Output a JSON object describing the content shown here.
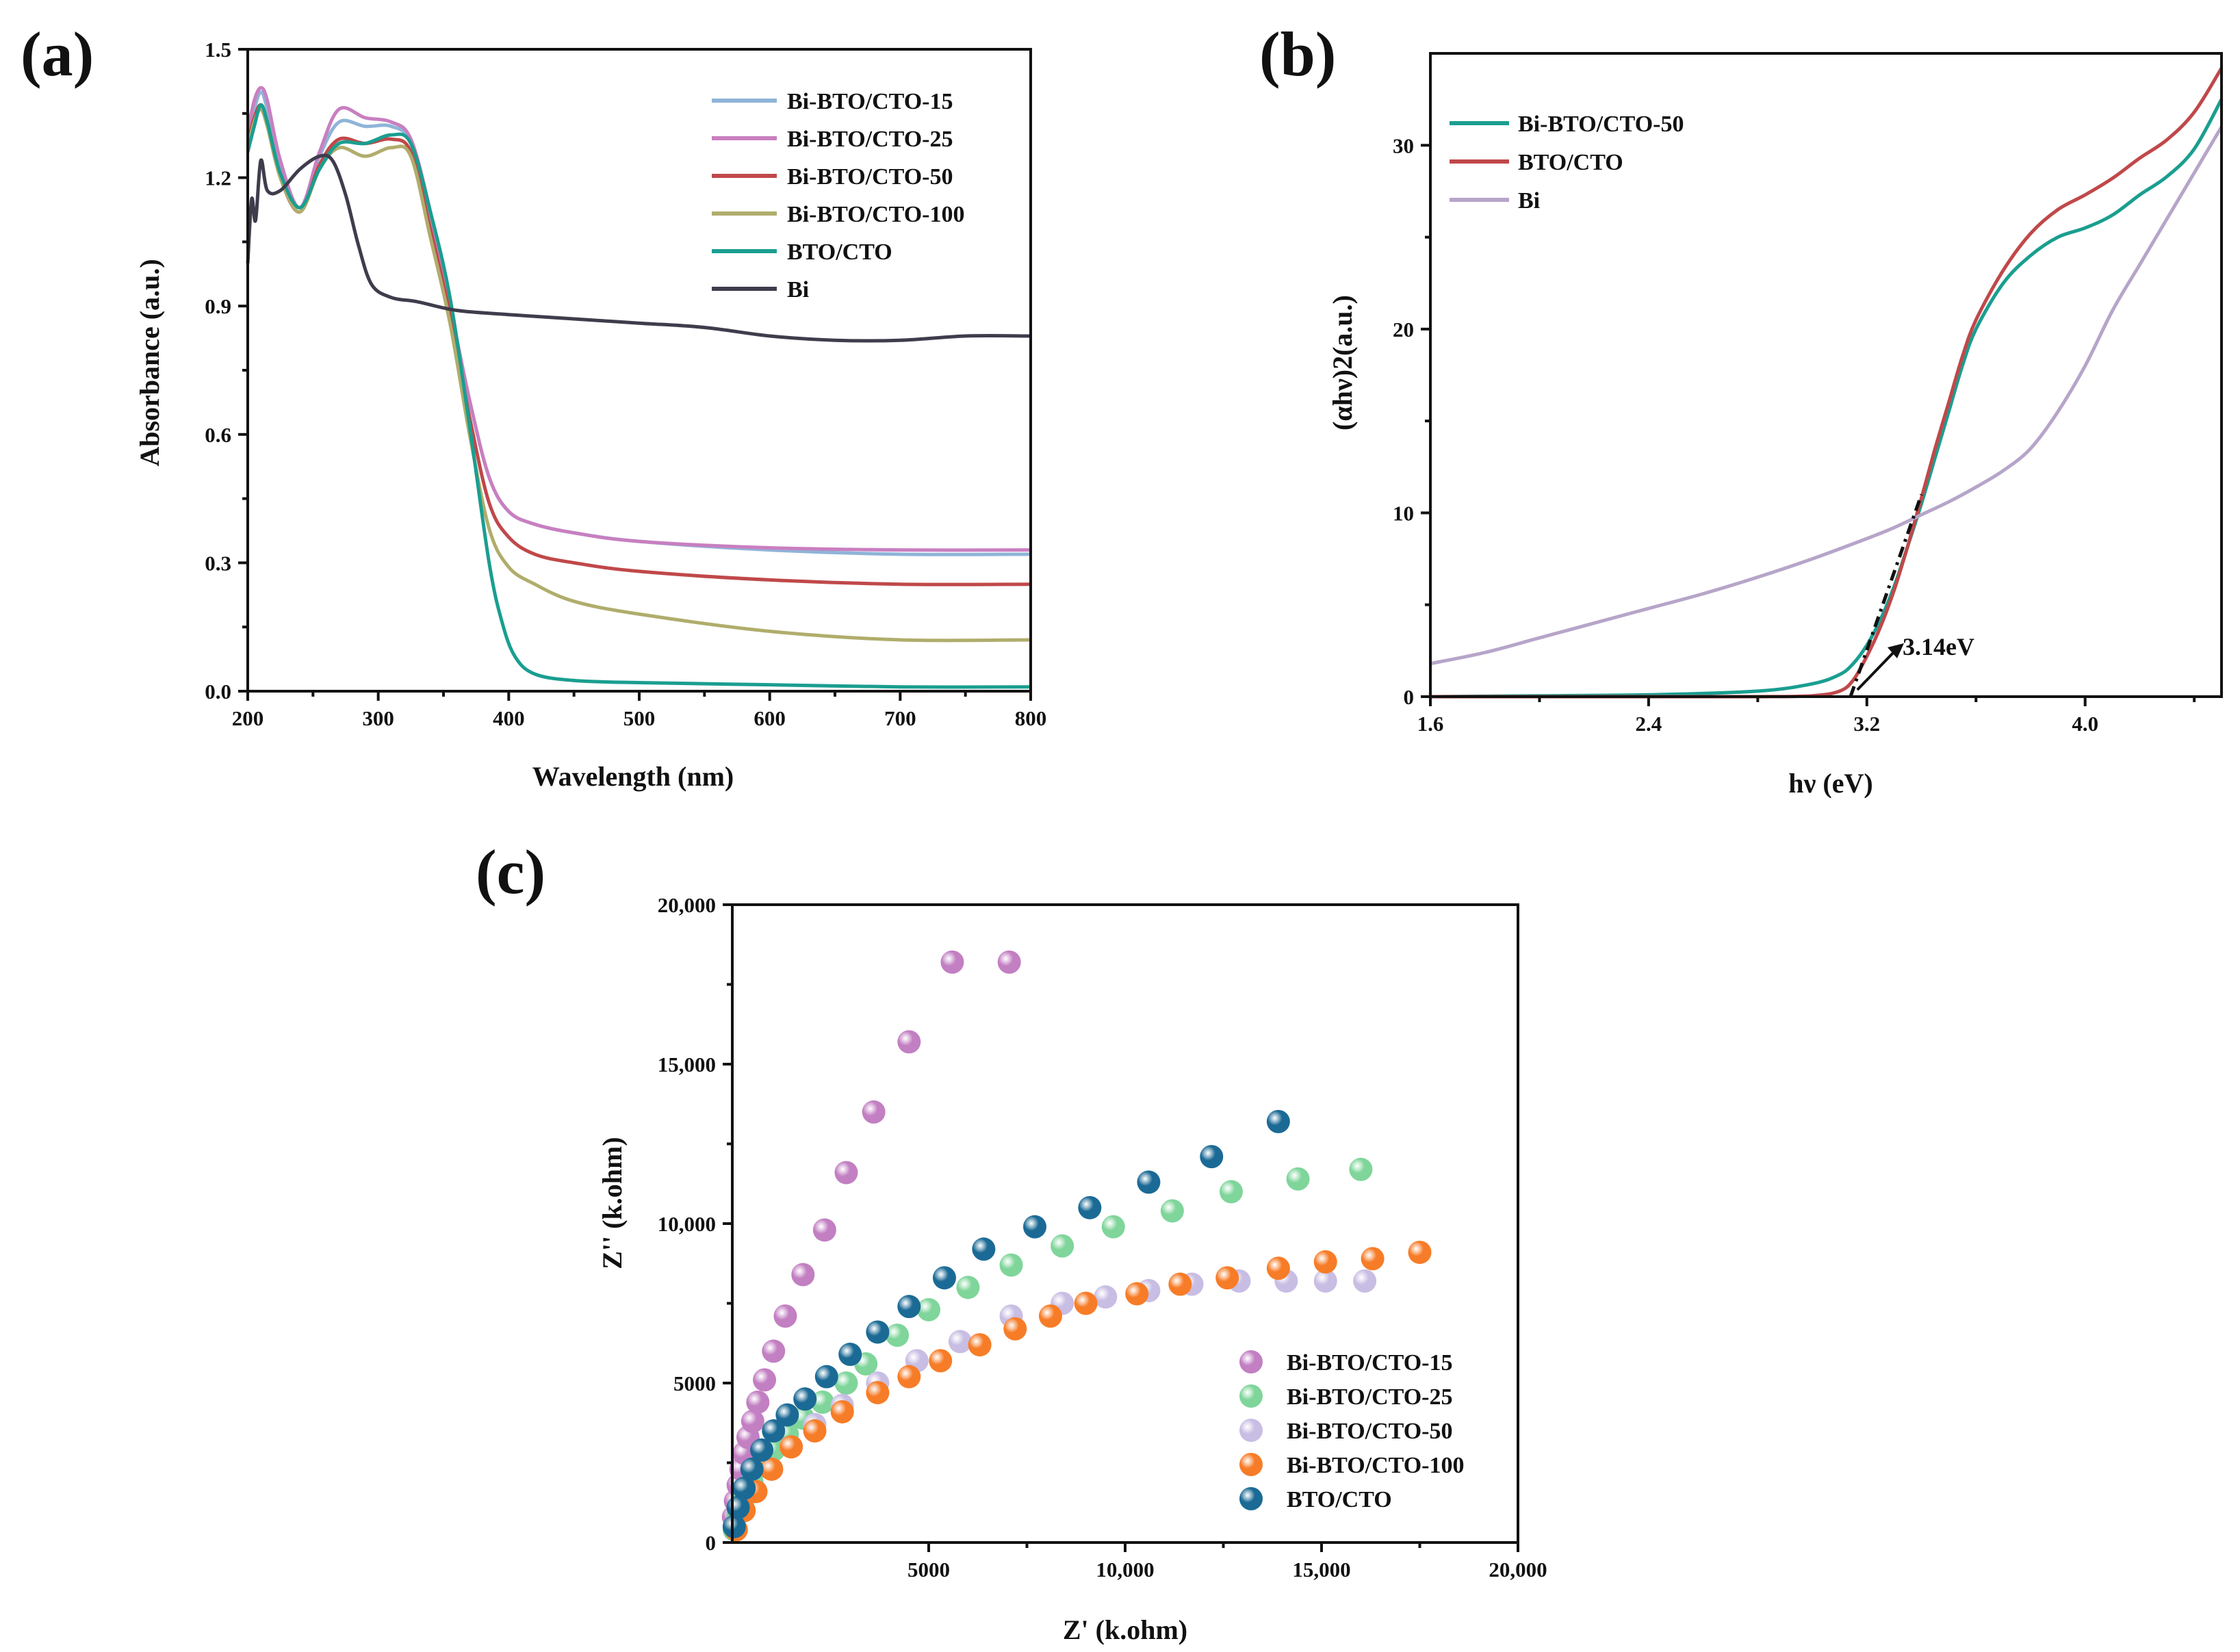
{
  "chart_data": [
    {
      "panel": "(a)",
      "type": "line",
      "title": "",
      "xlabel": "Wavelength (nm)",
      "ylabel": "Absorbance (a.u.)",
      "xlim": [
        200,
        800
      ],
      "ylim": [
        0,
        1.5
      ],
      "xticks": [
        "200",
        "300",
        "400",
        "500",
        "600",
        "700",
        "800"
      ],
      "yticks": [
        "0.0",
        "0.3",
        "0.6",
        "0.9",
        "1.2",
        "1.5"
      ],
      "legend_position": "top-right",
      "series": [
        {
          "name": "Bi-BTO/CTO-15",
          "color": "#8fb4d8",
          "x": [
            200,
            205,
            210,
            215,
            225,
            240,
            255,
            270,
            290,
            310,
            325,
            340,
            355,
            370,
            385,
            400,
            420,
            450,
            500,
            600,
            700,
            800
          ],
          "y": [
            1.3,
            1.36,
            1.4,
            1.36,
            1.22,
            1.13,
            1.25,
            1.33,
            1.32,
            1.32,
            1.28,
            1.1,
            0.9,
            0.68,
            0.5,
            0.42,
            0.39,
            0.37,
            0.35,
            0.33,
            0.32,
            0.32
          ]
        },
        {
          "name": "Bi-BTO/CTO-25",
          "color": "#c87fc0",
          "x": [
            200,
            205,
            210,
            215,
            225,
            240,
            255,
            270,
            290,
            310,
            325,
            340,
            355,
            370,
            385,
            400,
            420,
            450,
            500,
            600,
            700,
            800
          ],
          "y": [
            1.31,
            1.38,
            1.41,
            1.38,
            1.24,
            1.13,
            1.26,
            1.36,
            1.34,
            1.33,
            1.29,
            1.12,
            0.9,
            0.68,
            0.5,
            0.42,
            0.39,
            0.37,
            0.35,
            0.335,
            0.33,
            0.33
          ]
        },
        {
          "name": "Bi-BTO/CTO-50",
          "color": "#c0484a",
          "x": [
            200,
            205,
            210,
            215,
            225,
            240,
            255,
            270,
            290,
            310,
            325,
            340,
            355,
            370,
            385,
            400,
            420,
            450,
            500,
            600,
            700,
            800
          ],
          "y": [
            1.28,
            1.34,
            1.37,
            1.33,
            1.2,
            1.12,
            1.23,
            1.29,
            1.28,
            1.29,
            1.26,
            1.08,
            0.88,
            0.64,
            0.44,
            0.36,
            0.32,
            0.3,
            0.28,
            0.26,
            0.25,
            0.25
          ]
        },
        {
          "name": "Bi-BTO/CTO-100",
          "color": "#b0ad6c",
          "x": [
            200,
            205,
            210,
            215,
            225,
            240,
            255,
            270,
            290,
            310,
            325,
            340,
            355,
            370,
            385,
            400,
            420,
            450,
            500,
            600,
            700,
            800
          ],
          "y": [
            1.27,
            1.33,
            1.36,
            1.32,
            1.2,
            1.12,
            1.22,
            1.27,
            1.25,
            1.27,
            1.25,
            1.06,
            0.86,
            0.6,
            0.38,
            0.29,
            0.25,
            0.21,
            0.18,
            0.14,
            0.12,
            0.12
          ]
        },
        {
          "name": "BTO/CTO",
          "color": "#1a9e90",
          "x": [
            200,
            205,
            210,
            215,
            225,
            240,
            255,
            270,
            290,
            310,
            325,
            340,
            355,
            370,
            385,
            395,
            405,
            420,
            450,
            500,
            600,
            700,
            800
          ],
          "y": [
            1.26,
            1.32,
            1.37,
            1.33,
            1.21,
            1.13,
            1.22,
            1.28,
            1.28,
            1.3,
            1.28,
            1.12,
            0.92,
            0.62,
            0.3,
            0.16,
            0.08,
            0.04,
            0.025,
            0.02,
            0.015,
            0.01,
            0.01
          ]
        },
        {
          "name": "Bi",
          "color": "#3f3c4c",
          "x": [
            200,
            203,
            206,
            210,
            215,
            225,
            240,
            255,
            265,
            275,
            285,
            295,
            310,
            330,
            360,
            400,
            450,
            500,
            550,
            600,
            650,
            700,
            750,
            800
          ],
          "y": [
            1.0,
            1.15,
            1.1,
            1.24,
            1.17,
            1.17,
            1.22,
            1.25,
            1.24,
            1.16,
            1.04,
            0.95,
            0.92,
            0.91,
            0.89,
            0.88,
            0.87,
            0.86,
            0.85,
            0.83,
            0.82,
            0.82,
            0.83,
            0.83
          ]
        }
      ]
    },
    {
      "panel": "(b)",
      "type": "line",
      "title": "",
      "xlabel": "hν (eV)",
      "ylabel": "(αhν)2(a.u.)",
      "xlim": [
        1.6,
        4.5
      ],
      "ylim": [
        0,
        35
      ],
      "xticks": [
        "1.6",
        "2.4",
        "3.2",
        "4.0"
      ],
      "yticks": [
        "0",
        "10",
        "20",
        "30"
      ],
      "legend_position": "top-left",
      "annotation": "3.14eV",
      "tangent": {
        "x": [
          3.14,
          3.4
        ],
        "y": [
          0,
          11
        ]
      },
      "series": [
        {
          "name": "Bi-BTO/CTO-50",
          "color": "#1a9e90",
          "x": [
            1.6,
            2.0,
            2.4,
            2.8,
            3.0,
            3.1,
            3.15,
            3.2,
            3.25,
            3.3,
            3.35,
            3.4,
            3.45,
            3.5,
            3.55,
            3.6,
            3.7,
            3.8,
            3.9,
            4.0,
            4.1,
            4.2,
            4.3,
            4.4,
            4.5
          ],
          "y": [
            0.0,
            0.05,
            0.1,
            0.3,
            0.7,
            1.2,
            1.8,
            2.8,
            4.2,
            6.0,
            8.2,
            10.5,
            13.0,
            15.5,
            18.0,
            20.0,
            22.5,
            24.0,
            25.0,
            25.5,
            26.2,
            27.3,
            28.3,
            29.8,
            32.5
          ]
        },
        {
          "name": "BTO/CTO",
          "color": "#c0484a",
          "x": [
            1.6,
            2.0,
            2.4,
            2.8,
            3.0,
            3.1,
            3.15,
            3.2,
            3.25,
            3.3,
            3.35,
            3.4,
            3.45,
            3.5,
            3.55,
            3.6,
            3.7,
            3.8,
            3.9,
            4.0,
            4.1,
            4.2,
            4.3,
            4.4,
            4.5
          ],
          "y": [
            0.0,
            0.0,
            0.0,
            0.0,
            0.05,
            0.3,
            0.9,
            2.2,
            3.8,
            5.8,
            8.2,
            10.8,
            13.5,
            16.0,
            18.5,
            20.5,
            23.2,
            25.2,
            26.5,
            27.3,
            28.2,
            29.3,
            30.3,
            31.8,
            34.2
          ]
        },
        {
          "name": "Bi",
          "color": "#b6a5c9",
          "x": [
            1.6,
            1.8,
            2.0,
            2.2,
            2.4,
            2.6,
            2.8,
            3.0,
            3.2,
            3.3,
            3.4,
            3.5,
            3.6,
            3.7,
            3.8,
            3.9,
            4.0,
            4.1,
            4.2,
            4.3,
            4.4,
            4.5
          ],
          "y": [
            1.8,
            2.4,
            3.2,
            4.0,
            4.8,
            5.6,
            6.5,
            7.5,
            8.6,
            9.2,
            9.9,
            10.6,
            11.4,
            12.3,
            13.5,
            15.5,
            18.0,
            21.0,
            23.5,
            26.0,
            28.5,
            31.0
          ]
        }
      ]
    },
    {
      "panel": "(c)",
      "type": "scatter",
      "title": "",
      "xlabel": "Z' (k.ohm)",
      "ylabel": "Z'' (k.ohm)",
      "xlim": [
        0,
        20000
      ],
      "ylim": [
        0,
        20000
      ],
      "xticks": [
        "5000",
        "10,000",
        "15,000",
        "20,000"
      ],
      "yticks": [
        "0",
        "5000",
        "10,000",
        "15,000",
        "20,000"
      ],
      "x_origin_label": "0",
      "legend_position": "bottom-right",
      "series": [
        {
          "name": "Bi-BTO/CTO-15",
          "color": "#c27fc2",
          "x": [
            30,
            80,
            150,
            220,
            300,
            400,
            520,
            650,
            820,
            1050,
            1350,
            1800,
            2350,
            2900,
            3600,
            4500,
            5600,
            7050
          ],
          "y": [
            800,
            1300,
            1800,
            2300,
            2800,
            3300,
            3800,
            4400,
            5100,
            6000,
            7100,
            8400,
            9800,
            11600,
            13500,
            15700,
            18200,
            18200
          ]
        },
        {
          "name": "Bi-BTO/CTO-25",
          "color": "#7fd59a",
          "x": [
            50,
            150,
            300,
            500,
            750,
            1050,
            1400,
            1800,
            2300,
            2900,
            3400,
            4200,
            5000,
            6000,
            7100,
            8400,
            9700,
            11200,
            12700,
            14400,
            16000
          ],
          "y": [
            400,
            900,
            1400,
            1900,
            2400,
            2900,
            3400,
            3900,
            4400,
            5000,
            5600,
            6500,
            7300,
            8000,
            8700,
            9300,
            9900,
            10400,
            11000,
            11400,
            11700
          ]
        },
        {
          "name": "Bi-BTO/CTO-50",
          "color": "#c8bde3",
          "x": [
            100,
            300,
            600,
            1000,
            1500,
            2100,
            2800,
            3700,
            4700,
            5800,
            7100,
            8400,
            9500,
            10600,
            11700,
            12900,
            14100,
            15100,
            16100
          ],
          "y": [
            400,
            1000,
            1600,
            2300,
            3000,
            3700,
            4300,
            5000,
            5700,
            6300,
            7100,
            7500,
            7700,
            7900,
            8100,
            8200,
            8200,
            8200,
            8200
          ]
        },
        {
          "name": "Bi-BTO/CTO-100",
          "color": "#f77c27",
          "x": [
            100,
            300,
            600,
            1000,
            1500,
            2100,
            2800,
            3700,
            4500,
            5300,
            6300,
            7200,
            8100,
            9000,
            10300,
            11400,
            12600,
            13900,
            15100,
            16300,
            17500
          ],
          "y": [
            400,
            1000,
            1600,
            2300,
            3000,
            3500,
            4100,
            4700,
            5200,
            5700,
            6200,
            6700,
            7100,
            7500,
            7800,
            8100,
            8300,
            8600,
            8800,
            8900,
            9100
          ]
        },
        {
          "name": "BTO/CTO",
          "color": "#1b6a95",
          "x": [
            50,
            150,
            300,
            500,
            750,
            1050,
            1400,
            1850,
            2400,
            3000,
            3700,
            4500,
            5400,
            6400,
            7700,
            9100,
            10600,
            12200,
            13900
          ],
          "y": [
            500,
            1100,
            1700,
            2300,
            2900,
            3500,
            4000,
            4500,
            5200,
            5900,
            6600,
            7400,
            8300,
            9200,
            9900,
            10500,
            11300,
            12100,
            13200
          ]
        }
      ]
    }
  ]
}
